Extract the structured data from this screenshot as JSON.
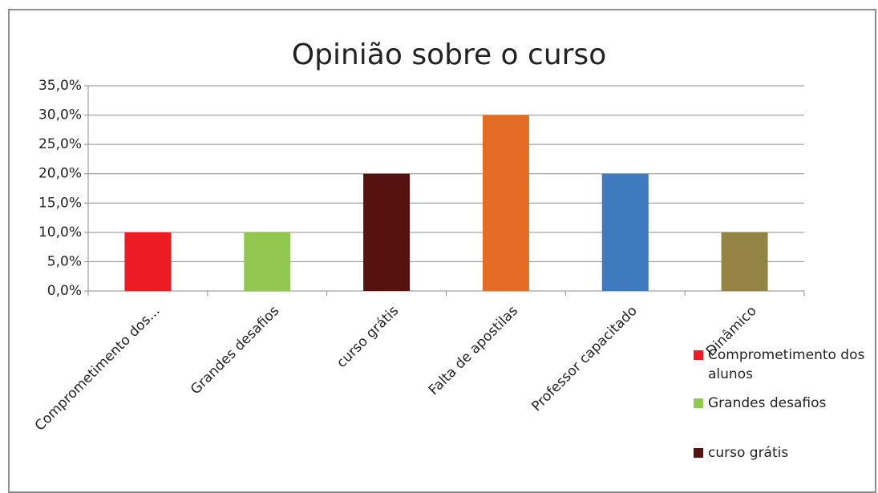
{
  "chart_data": {
    "type": "bar",
    "title": "Opinião sobre o curso",
    "categories": [
      "Comprometimento dos...",
      "Grandes desafios",
      "curso grátis",
      "Falta de apostilas",
      "Professor capacitado",
      "Dinâmico"
    ],
    "values": [
      10,
      10,
      20,
      30,
      20,
      10
    ],
    "colors": [
      "#ed1c24",
      "#92c84f",
      "#56120e",
      "#e46c25",
      "#3f7abf",
      "#938446"
    ],
    "ylim": [
      0,
      35
    ],
    "yticks": [
      {
        "value": 0,
        "label": "0,0%"
      },
      {
        "value": 5,
        "label": "5,0%"
      },
      {
        "value": 10,
        "label": "10,0%"
      },
      {
        "value": 15,
        "label": "15,0%"
      },
      {
        "value": 20,
        "label": "20,0%"
      },
      {
        "value": 25,
        "label": "25,0%"
      },
      {
        "value": 30,
        "label": "30,0%"
      },
      {
        "value": 35,
        "label": "35,0%"
      }
    ],
    "grid": true,
    "legend": [
      {
        "name": "Comprometimento dos alunos",
        "color": "#ed1c24"
      },
      {
        "name": "Grandes desafios",
        "color": "#92c84f"
      },
      {
        "name": "curso grátis",
        "color": "#56120e"
      }
    ]
  }
}
